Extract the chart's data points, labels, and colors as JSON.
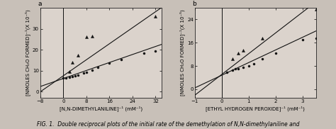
{
  "panel_a": {
    "label": "a",
    "xlabel": "[N,N-DIMETHYLANILINE]⁻¹ (mM⁻¹)",
    "ylabel_lines": [
      "[NMOLES CH₂O FORMED]⁻¹(X 10⁻⁵)"
    ],
    "xlim": [
      -8,
      34
    ],
    "ylim": [
      -3,
      40
    ],
    "xticks": [
      -8,
      0,
      8,
      16,
      24,
      32
    ],
    "yticks": [
      0,
      10,
      20,
      30
    ],
    "triangle_points": [
      [
        2,
        9.5
      ],
      [
        3,
        14.0
      ],
      [
        5,
        17.5
      ],
      [
        8,
        26.0
      ],
      [
        10,
        26.5
      ],
      [
        32,
        36.0
      ]
    ],
    "circle_points": [
      [
        0,
        6.5
      ],
      [
        1,
        6.5
      ],
      [
        2,
        6.8
      ],
      [
        3,
        7.2
      ],
      [
        4,
        7.5
      ],
      [
        5,
        7.8
      ],
      [
        7,
        9.0
      ],
      [
        8,
        9.2
      ],
      [
        10,
        10.2
      ],
      [
        12,
        11.5
      ],
      [
        16,
        13.5
      ],
      [
        20,
        15.5
      ],
      [
        28,
        18.5
      ],
      [
        32,
        19.5
      ]
    ],
    "triangle_line_x": [
      -8,
      34
    ],
    "triangle_line_y": [
      0.0,
      40.0
    ],
    "circle_line_x": [
      -8,
      34
    ],
    "circle_line_y": [
      2.5,
      22.5
    ],
    "vline_x": 0
  },
  "panel_b": {
    "label": "b",
    "xlabel": "[ETHYL HYDROGEN PEROXIDE]⁻¹ (mM⁻¹)",
    "ylabel_lines": [
      "[NMOLES CH₂O FORMED]⁻¹(X 10⁻⁵)"
    ],
    "xlim": [
      -1,
      3.5
    ],
    "ylim": [
      -3,
      28
    ],
    "xticks": [
      -1,
      0,
      1,
      2,
      3
    ],
    "yticks": [
      0,
      8,
      16,
      24
    ],
    "triangle_points": [
      [
        0.4,
        10.5
      ],
      [
        0.6,
        12.5
      ],
      [
        0.8,
        13.5
      ],
      [
        1.5,
        17.5
      ],
      [
        3.5,
        27.5
      ]
    ],
    "circle_points": [
      [
        0.2,
        5.8
      ],
      [
        0.4,
        6.5
      ],
      [
        0.5,
        7.0
      ],
      [
        0.6,
        7.0
      ],
      [
        0.8,
        7.5
      ],
      [
        1.0,
        8.0
      ],
      [
        1.2,
        8.8
      ],
      [
        1.5,
        10.5
      ],
      [
        2.0,
        12.5
      ],
      [
        3.0,
        17.0
      ],
      [
        3.5,
        17.5
      ]
    ],
    "triangle_line_x": [
      -1,
      3.5
    ],
    "triangle_line_y": [
      -2.0,
      30.0
    ],
    "circle_line_x": [
      -1,
      3.5
    ],
    "circle_line_y": [
      0.5,
      20.0
    ],
    "vline_x": 0
  },
  "bg_color": "#c8c0b8",
  "plot_bg": "#dbd3cc",
  "marker_color": "#111111",
  "line_color": "#111111",
  "fontsize_label": 5.0,
  "fontsize_tick": 5.0,
  "fontsize_panel": 6.5,
  "fontsize_caption": 5.5,
  "caption": "FIG. 1.  Double reciprocal plots of the initial rate of the demethylation of N,N-dimethylaniline and"
}
